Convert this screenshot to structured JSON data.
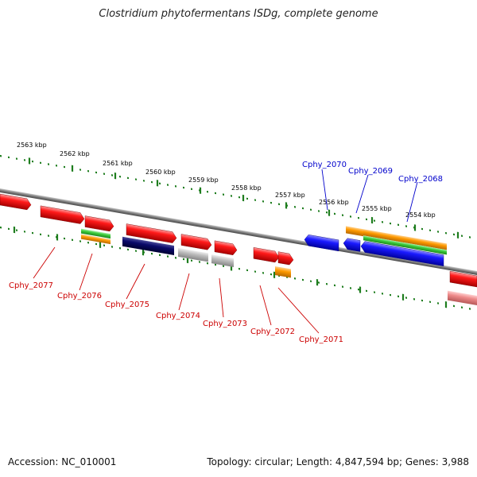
{
  "title": "Clostridium phytofermentans ISDg, complete genome",
  "footer": {
    "accession": "Accession: NC_010001",
    "summary": "Topology: circular; Length: 4,847,594 bp; Genes: 3,988"
  },
  "colors": {
    "backbone": "#888888",
    "tick": "#1e7d1e",
    "forward_gene": "#ee0000",
    "reverse_gene": "#0000ee",
    "label_forward": "#cc0000",
    "label_reverse": "#0000cc",
    "orange_feature": "#ff9900",
    "green_feature": "#33cc33",
    "navy_feature": "#000066",
    "gray_feature": "#bbbbbb",
    "pink_feature": "#e88a8a"
  },
  "scale_labels": [
    "2563 kbp",
    "2562 kbp",
    "2561 kbp",
    "2560 kbp",
    "2559 kbp",
    "2558 kbp",
    "2557 kbp",
    "2556 kbp",
    "2555 kbp",
    "2554 kbp"
  ],
  "gene_labels_top": [
    "Cphy_2070",
    "Cphy_2069",
    "Cphy_2068"
  ],
  "gene_labels_bottom": [
    "Cphy_2077",
    "Cphy_2076",
    "Cphy_2075",
    "Cphy_2074",
    "Cphy_2073",
    "Cphy_2072",
    "Cphy_2071"
  ]
}
